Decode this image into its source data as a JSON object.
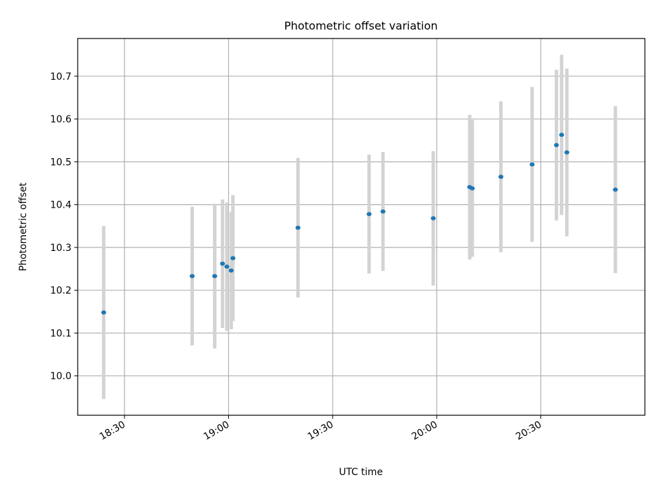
{
  "chart_data": {
    "type": "scatter",
    "title": "Photometric offset variation",
    "xlabel": "UTC time",
    "ylabel": "Photometric offset",
    "x_ticks": [
      "18:30",
      "19:00",
      "19:30",
      "20:00",
      "20:30"
    ],
    "y_ticks": [
      "10.0",
      "10.1",
      "10.2",
      "10.3",
      "10.4",
      "10.5",
      "10.6",
      "10.7"
    ],
    "xlim": [
      "18:16:30",
      "21:00:00"
    ],
    "ylim": [
      9.908,
      10.788
    ],
    "grid": true,
    "marker_color": "#1f77b4",
    "errorbar_color": "#d3d3d3",
    "points": [
      {
        "x": "18:24:00",
        "y": 10.148,
        "err": 0.202
      },
      {
        "x": "18:49:30",
        "y": 10.233,
        "err": 0.162
      },
      {
        "x": "18:56:00",
        "y": 10.233,
        "err": 0.169
      },
      {
        "x": "18:58:15",
        "y": 10.262,
        "err": 0.15
      },
      {
        "x": "18:59:30",
        "y": 10.255,
        "err": 0.15
      },
      {
        "x": "19:00:45",
        "y": 10.246,
        "err": 0.137
      },
      {
        "x": "19:01:15",
        "y": 10.275,
        "err": 0.147
      },
      {
        "x": "19:20:00",
        "y": 10.346,
        "err": 0.163
      },
      {
        "x": "19:40:30",
        "y": 10.378,
        "err": 0.139
      },
      {
        "x": "19:44:30",
        "y": 10.384,
        "err": 0.139
      },
      {
        "x": "19:59:00",
        "y": 10.368,
        "err": 0.157
      },
      {
        "x": "20:09:30",
        "y": 10.441,
        "err": 0.169
      },
      {
        "x": "20:10:15",
        "y": 10.438,
        "err": 0.16
      },
      {
        "x": "20:18:30",
        "y": 10.465,
        "err": 0.176
      },
      {
        "x": "20:27:30",
        "y": 10.494,
        "err": 0.181
      },
      {
        "x": "20:34:30",
        "y": 10.539,
        "err": 0.176
      },
      {
        "x": "20:36:00",
        "y": 10.563,
        "err": 0.187
      },
      {
        "x": "20:37:30",
        "y": 10.522,
        "err": 0.196
      },
      {
        "x": "20:51:30",
        "y": 10.435,
        "err": 0.195
      }
    ]
  }
}
